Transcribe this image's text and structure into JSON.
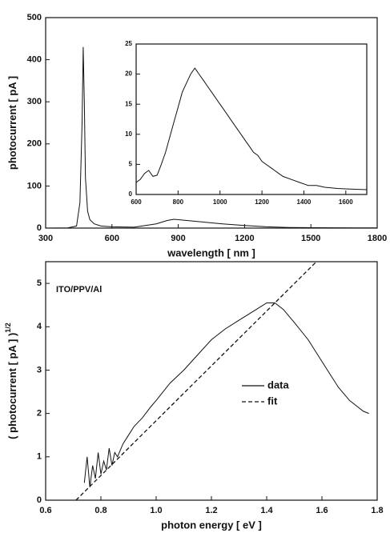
{
  "chart_data": [
    {
      "type": "line",
      "xlabel": "wavelength [ nm ]",
      "ylabel": "photocurrent [ pA ]",
      "xlim": [
        300,
        1800
      ],
      "xticks": [
        300,
        600,
        900,
        1200,
        1500,
        1800
      ],
      "ylim": [
        0,
        500
      ],
      "yticks": [
        0,
        100,
        200,
        300,
        400,
        500
      ],
      "series": [
        {
          "color": "#111111",
          "x": [
            300,
            400,
            440,
            455,
            465,
            470,
            475,
            480,
            490,
            500,
            520,
            550,
            600,
            700,
            800,
            850,
            880,
            920,
            1000,
            1100,
            1200,
            1300,
            1400,
            1500,
            1600,
            1700,
            1800
          ],
          "values": [
            0,
            0.5,
            5,
            60,
            250,
            430,
            300,
            120,
            40,
            20,
            10,
            5,
            3,
            2,
            10,
            18,
            21,
            19,
            15,
            10,
            6,
            3,
            1.5,
            1,
            0.8,
            0.5,
            0.3
          ]
        }
      ]
    },
    {
      "type": "line",
      "xlim": [
        600,
        1700
      ],
      "xticks": [
        600,
        800,
        1000,
        1200,
        1400,
        1600
      ],
      "ylim": [
        0,
        25
      ],
      "yticks": [
        0,
        5,
        10,
        15,
        20,
        25
      ],
      "series": [
        {
          "color": "#111111",
          "x": [
            600,
            620,
            640,
            660,
            680,
            700,
            720,
            740,
            760,
            780,
            800,
            820,
            840,
            860,
            880,
            890,
            900,
            920,
            940,
            960,
            980,
            1000,
            1020,
            1040,
            1060,
            1080,
            1100,
            1120,
            1140,
            1160,
            1180,
            1200,
            1220,
            1240,
            1260,
            1280,
            1300,
            1340,
            1380,
            1420,
            1460,
            1500,
            1560,
            1620,
            1700
          ],
          "values": [
            2,
            2.5,
            3.5,
            4,
            3,
            3.2,
            5,
            7,
            9.5,
            12,
            14.5,
            17,
            18.5,
            20,
            21,
            20.5,
            20,
            19,
            18,
            17,
            16,
            15,
            14,
            13,
            12,
            11,
            10,
            9,
            8,
            7,
            6.5,
            5.5,
            5,
            4.5,
            4,
            3.5,
            3,
            2.5,
            2,
            1.5,
            1.5,
            1.2,
            1,
            0.9,
            0.8
          ]
        }
      ]
    },
    {
      "type": "line",
      "xlabel": "photon energy [ eV ]",
      "ylabel": "( photocurrent [ pA ] )",
      "ylabel_superscript": "1/2",
      "annotation": "ITO/PPV/Al",
      "legend": "right",
      "xlim": [
        0.6,
        1.8
      ],
      "xticks": [
        0.6,
        0.8,
        {
          "value": 1,
          "label": "1.0"
        },
        1.2,
        1.4,
        1.6,
        1.8
      ],
      "ylim": [
        0,
        5.5
      ],
      "yticks": [
        0,
        1,
        2,
        3,
        4,
        5
      ],
      "series": [
        {
          "name": "data",
          "color": "#111111",
          "dash": false,
          "x": [
            0.74,
            0.75,
            0.76,
            0.77,
            0.78,
            0.79,
            0.8,
            0.81,
            0.82,
            0.83,
            0.84,
            0.85,
            0.86,
            0.88,
            0.9,
            0.92,
            0.95,
            0.98,
            1.0,
            1.05,
            1.1,
            1.15,
            1.2,
            1.25,
            1.3,
            1.35,
            1.4,
            1.43,
            1.46,
            1.5,
            1.55,
            1.6,
            1.63,
            1.66,
            1.7,
            1.73,
            1.75,
            1.77
          ],
          "values": [
            0.4,
            1,
            0.3,
            0.8,
            0.5,
            1.1,
            0.6,
            0.9,
            0.7,
            1.2,
            0.8,
            1.1,
            1,
            1.3,
            1.5,
            1.7,
            1.9,
            2.15,
            2.3,
            2.7,
            3.0,
            3.35,
            3.7,
            3.95,
            4.15,
            4.35,
            4.55,
            4.55,
            4.4,
            4.1,
            3.7,
            3.2,
            2.9,
            2.6,
            2.3,
            2.15,
            2.05,
            2.0
          ]
        },
        {
          "name": "fit",
          "color": "#111111",
          "dash": true,
          "x": [
            0.71,
            1.58
          ],
          "values": [
            0,
            5.5
          ]
        }
      ]
    }
  ]
}
